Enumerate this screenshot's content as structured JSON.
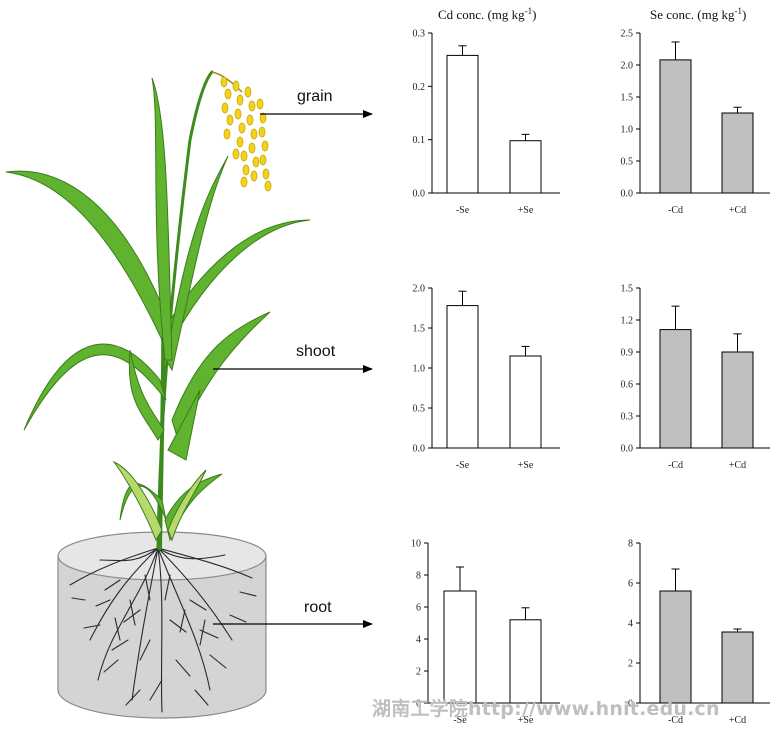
{
  "column_titles": {
    "cd": {
      "main": "Cd conc. (mg kg",
      "sup": "-1",
      "close": ")"
    },
    "se": {
      "main": "Se conc. (mg kg",
      "sup": "-1",
      "close": ")"
    }
  },
  "organ_labels": {
    "grain": "grain",
    "shoot": "shoot",
    "root": "root"
  },
  "watermark": "湖南工学院http://www.hnit.edu.cn",
  "colors": {
    "cd_bars": "#ffffff",
    "se_bars": "#c0c0c0",
    "stroke": "#000000",
    "leaf": "#5fb32e",
    "grain": "#f2d21a",
    "pot": "#d9d9d9"
  },
  "chart_data": [
    {
      "id": "grain-cd",
      "type": "bar",
      "categories": [
        "-Se",
        "+Se"
      ],
      "values": [
        0.258,
        0.098
      ],
      "errors": [
        0.018,
        0.012
      ],
      "ylim": [
        0,
        0.3
      ],
      "ticks": [
        "0.0",
        "0.1",
        "0.2",
        "0.3"
      ],
      "fill": "white"
    },
    {
      "id": "grain-se",
      "type": "bar",
      "categories": [
        "-Cd",
        "+Cd"
      ],
      "values": [
        2.08,
        1.25
      ],
      "errors": [
        0.28,
        0.09
      ],
      "ylim": [
        0,
        2.5
      ],
      "ticks": [
        "0.0",
        "0.5",
        "1.0",
        "1.5",
        "2.0",
        "2.5"
      ],
      "fill": "gray"
    },
    {
      "id": "shoot-cd",
      "type": "bar",
      "categories": [
        "-Se",
        "+Se"
      ],
      "values": [
        1.78,
        1.15
      ],
      "errors": [
        0.18,
        0.12
      ],
      "ylim": [
        0,
        2.0
      ],
      "ticks": [
        "0.0",
        "0.5",
        "1.0",
        "1.5",
        "2.0"
      ],
      "fill": "white"
    },
    {
      "id": "shoot-se",
      "type": "bar",
      "categories": [
        "-Cd",
        "+Cd"
      ],
      "values": [
        1.11,
        0.9
      ],
      "errors": [
        0.22,
        0.17
      ],
      "ylim": [
        0,
        1.5
      ],
      "ticks": [
        "0.0",
        "0.3",
        "0.6",
        "0.9",
        "1.2",
        "1.5"
      ],
      "fill": "gray"
    },
    {
      "id": "root-cd",
      "type": "bar",
      "categories": [
        "-Se",
        "+Se"
      ],
      "values": [
        7.0,
        5.2
      ],
      "errors": [
        1.5,
        0.75
      ],
      "ylim": [
        0,
        10
      ],
      "ticks": [
        "0",
        "2",
        "4",
        "6",
        "8",
        "10"
      ],
      "fill": "white"
    },
    {
      "id": "root-se",
      "type": "bar",
      "categories": [
        "-Cd",
        "+Cd"
      ],
      "values": [
        5.6,
        3.55
      ],
      "errors": [
        1.1,
        0.15
      ],
      "ylim": [
        0,
        8
      ],
      "ticks": [
        "0",
        "2",
        "4",
        "6",
        "8"
      ],
      "fill": "gray"
    }
  ]
}
